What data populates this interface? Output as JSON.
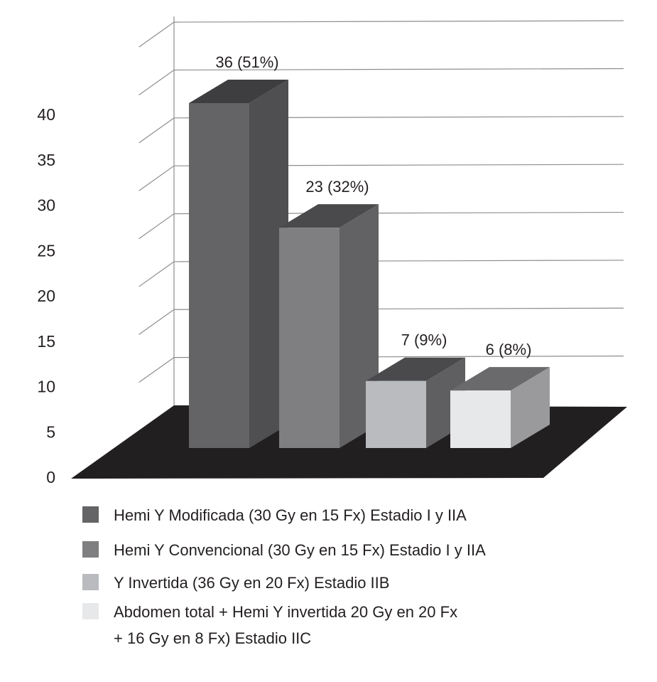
{
  "chart_data": {
    "type": "bar",
    "title": "",
    "xlabel": "",
    "ylabel": "",
    "ylim": [
      0,
      40
    ],
    "yticks": [
      0,
      5,
      10,
      15,
      20,
      25,
      30,
      35,
      40
    ],
    "grid": true,
    "legend_position": "bottom",
    "categories": [
      "Hemi Y Modificada (30 Gy en 15 Fx) Estadio I y IIA",
      "Hemi Y Convencional (30 Gy en 15 Fx) Estadio I y IIA",
      "Y Invertida (36 Gy en 20 Fx) Estadio IIB",
      "Abdomen total + Hemi Y invertida 20 Gy en 20 Fx + 16 Gy en 8 Fx) Estadio IIC"
    ],
    "values": [
      36,
      23,
      7,
      6
    ],
    "data_labels": [
      "36 (51%)",
      "23 (32%)",
      "7 (9%)",
      "6 (8%)"
    ],
    "colors": [
      "#646466",
      "#7f7f82",
      "#b9bbbe",
      "#e7e8e9"
    ],
    "legend": [
      {
        "lines": [
          "Hemi Y Modificada (30 Gy en 15 Fx) Estadio I y IIA"
        ],
        "color": "#646466"
      },
      {
        "lines": [
          "Hemi Y Convencional (30 Gy en 15 Fx) Estadio I y IIA"
        ],
        "color": "#7f7f82"
      },
      {
        "lines": [
          "Y Invertida (36 Gy en 20 Fx) Estadio IIB"
        ],
        "color": "#b9bbbe"
      },
      {
        "lines": [
          "Abdomen total + Hemi Y invertida 20 Gy en 20 Fx",
          "+ 16 Gy en 8 Fx) Estadio IIC"
        ],
        "color": "#e7e8e9"
      }
    ]
  }
}
